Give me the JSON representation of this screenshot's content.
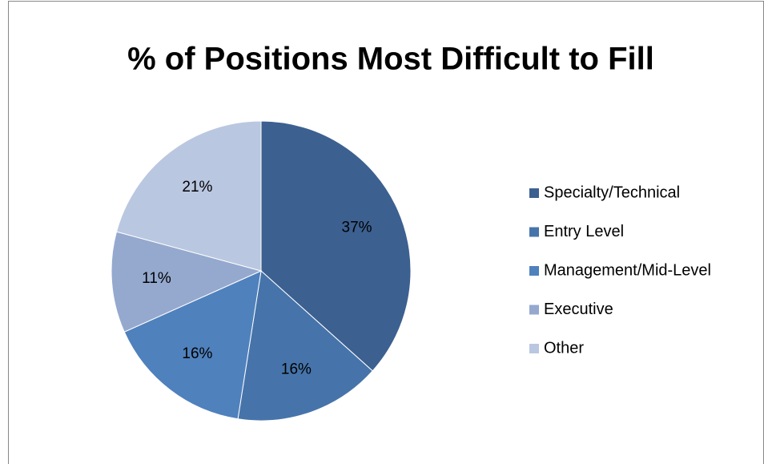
{
  "chart_data": {
    "type": "pie",
    "title": "% of Positions Most Difficult to Fill",
    "categories": [
      "Specialty/Technical",
      "Entry Level",
      "Management/Mid-Level",
      "Executive",
      "Other"
    ],
    "values": [
      37,
      16,
      16,
      11,
      21
    ],
    "value_labels": [
      "37%",
      "16%",
      "16%",
      "11%",
      "21%"
    ],
    "colors": [
      "#3c6090",
      "#4674aa",
      "#4f81bd",
      "#95a9cf",
      "#bac7e0"
    ],
    "legend": "right"
  }
}
